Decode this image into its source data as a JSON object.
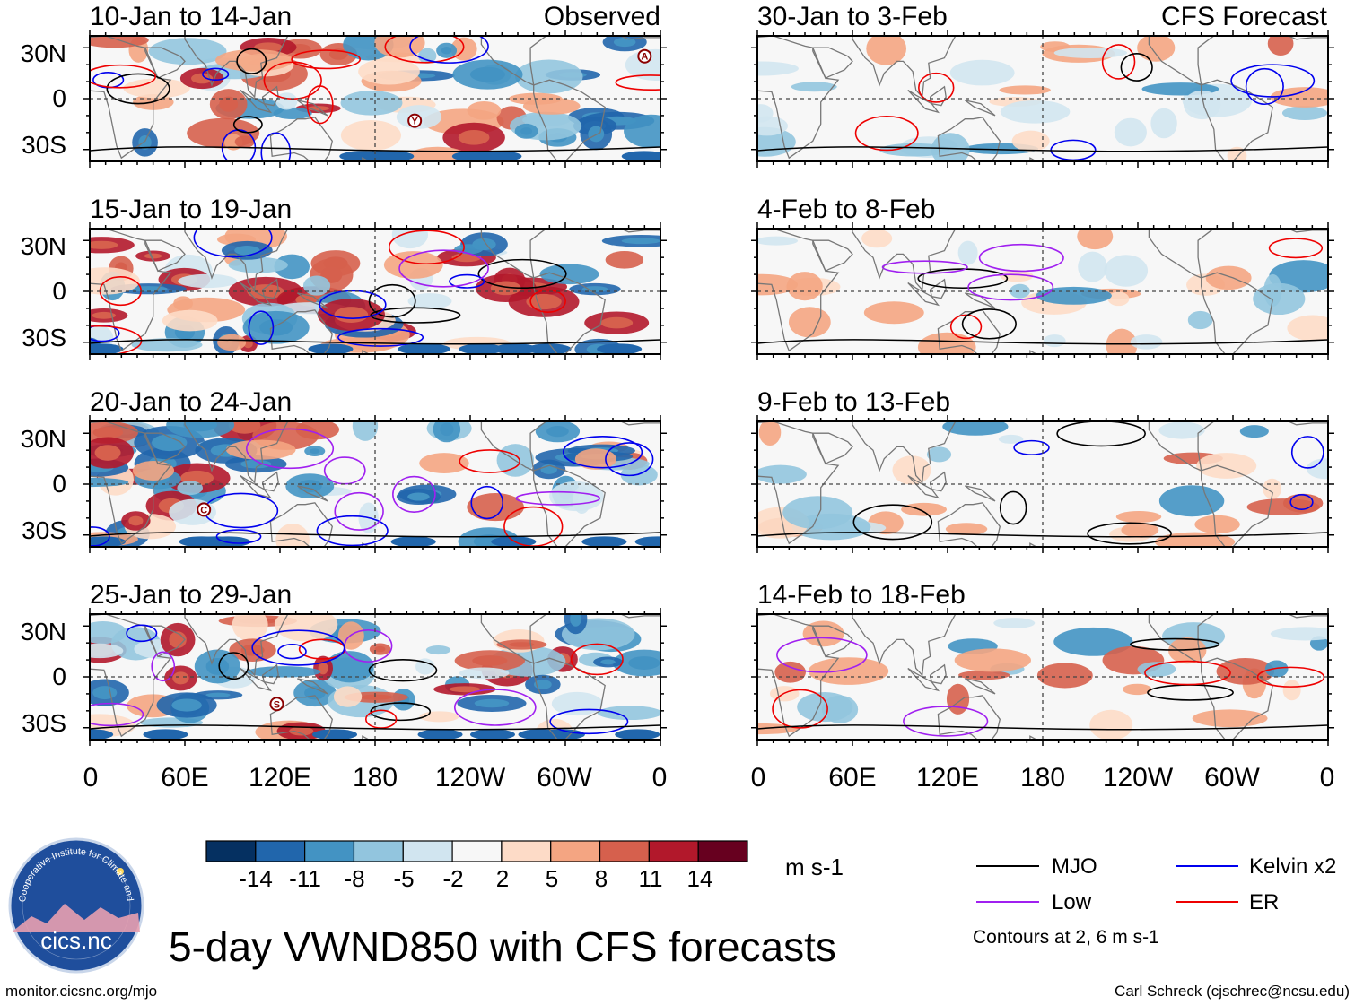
{
  "figure": {
    "title": "5-day VWND850 with CFS forecasts",
    "units": "m s-1",
    "observed_tag": "Observed",
    "forecast_tag": "CFS Forecast",
    "website": "monitor.cicsnc.org/mjo",
    "credit": "Carl Schreck (cjschrec@ncsu.edu)",
    "logo_text": "cics.nc",
    "logo_ring_text": "Cooperative Institute for Climate and Satellites",
    "contour_note": "Contours at 2, 6 m s-1"
  },
  "chart_data": {
    "type": "heatmap",
    "variable": "VWND850",
    "lat_ticks": [
      "30N",
      "0",
      "30S"
    ],
    "lon_ticks": [
      "0",
      "60E",
      "120E",
      "180",
      "120W",
      "60W",
      "0"
    ],
    "observed_panels": [
      {
        "period": "10-Jan to 14-Jan",
        "markers": [
          {
            "label": "A",
            "lon": 350,
            "lat": 25
          },
          {
            "label": "Y",
            "lon": 205,
            "lat": -13
          }
        ]
      },
      {
        "period": "15-Jan to 19-Jan",
        "markers": []
      },
      {
        "period": "20-Jan to 24-Jan",
        "markers": [
          {
            "label": "C",
            "lon": 72,
            "lat": -15
          }
        ]
      },
      {
        "period": "25-Jan to 29-Jan",
        "markers": [
          {
            "label": "S",
            "lon": 118,
            "lat": -16
          }
        ]
      }
    ],
    "forecast_panels": [
      {
        "period": "30-Jan to 3-Feb"
      },
      {
        "period": "4-Feb to 8-Feb"
      },
      {
        "period": "9-Feb to 13-Feb"
      },
      {
        "period": "14-Feb to 18-Feb"
      }
    ],
    "colorbar": {
      "levels": [
        "-14",
        "-11",
        "-8",
        "-5",
        "-2",
        "2",
        "5",
        "8",
        "11",
        "14"
      ],
      "colors": [
        "#053061",
        "#2166ac",
        "#4393c3",
        "#92c5de",
        "#d1e5f0",
        "#f7f7f7",
        "#fddbc7",
        "#f4a582",
        "#d6604d",
        "#b2182b",
        "#67001f"
      ]
    },
    "legend": [
      {
        "name": "MJO",
        "color": "#000000"
      },
      {
        "name": "Kelvin x2",
        "color": "#0000ee"
      },
      {
        "name": "Low",
        "color": "#a020f0"
      },
      {
        "name": "ER",
        "color": "#ee0000"
      }
    ]
  }
}
